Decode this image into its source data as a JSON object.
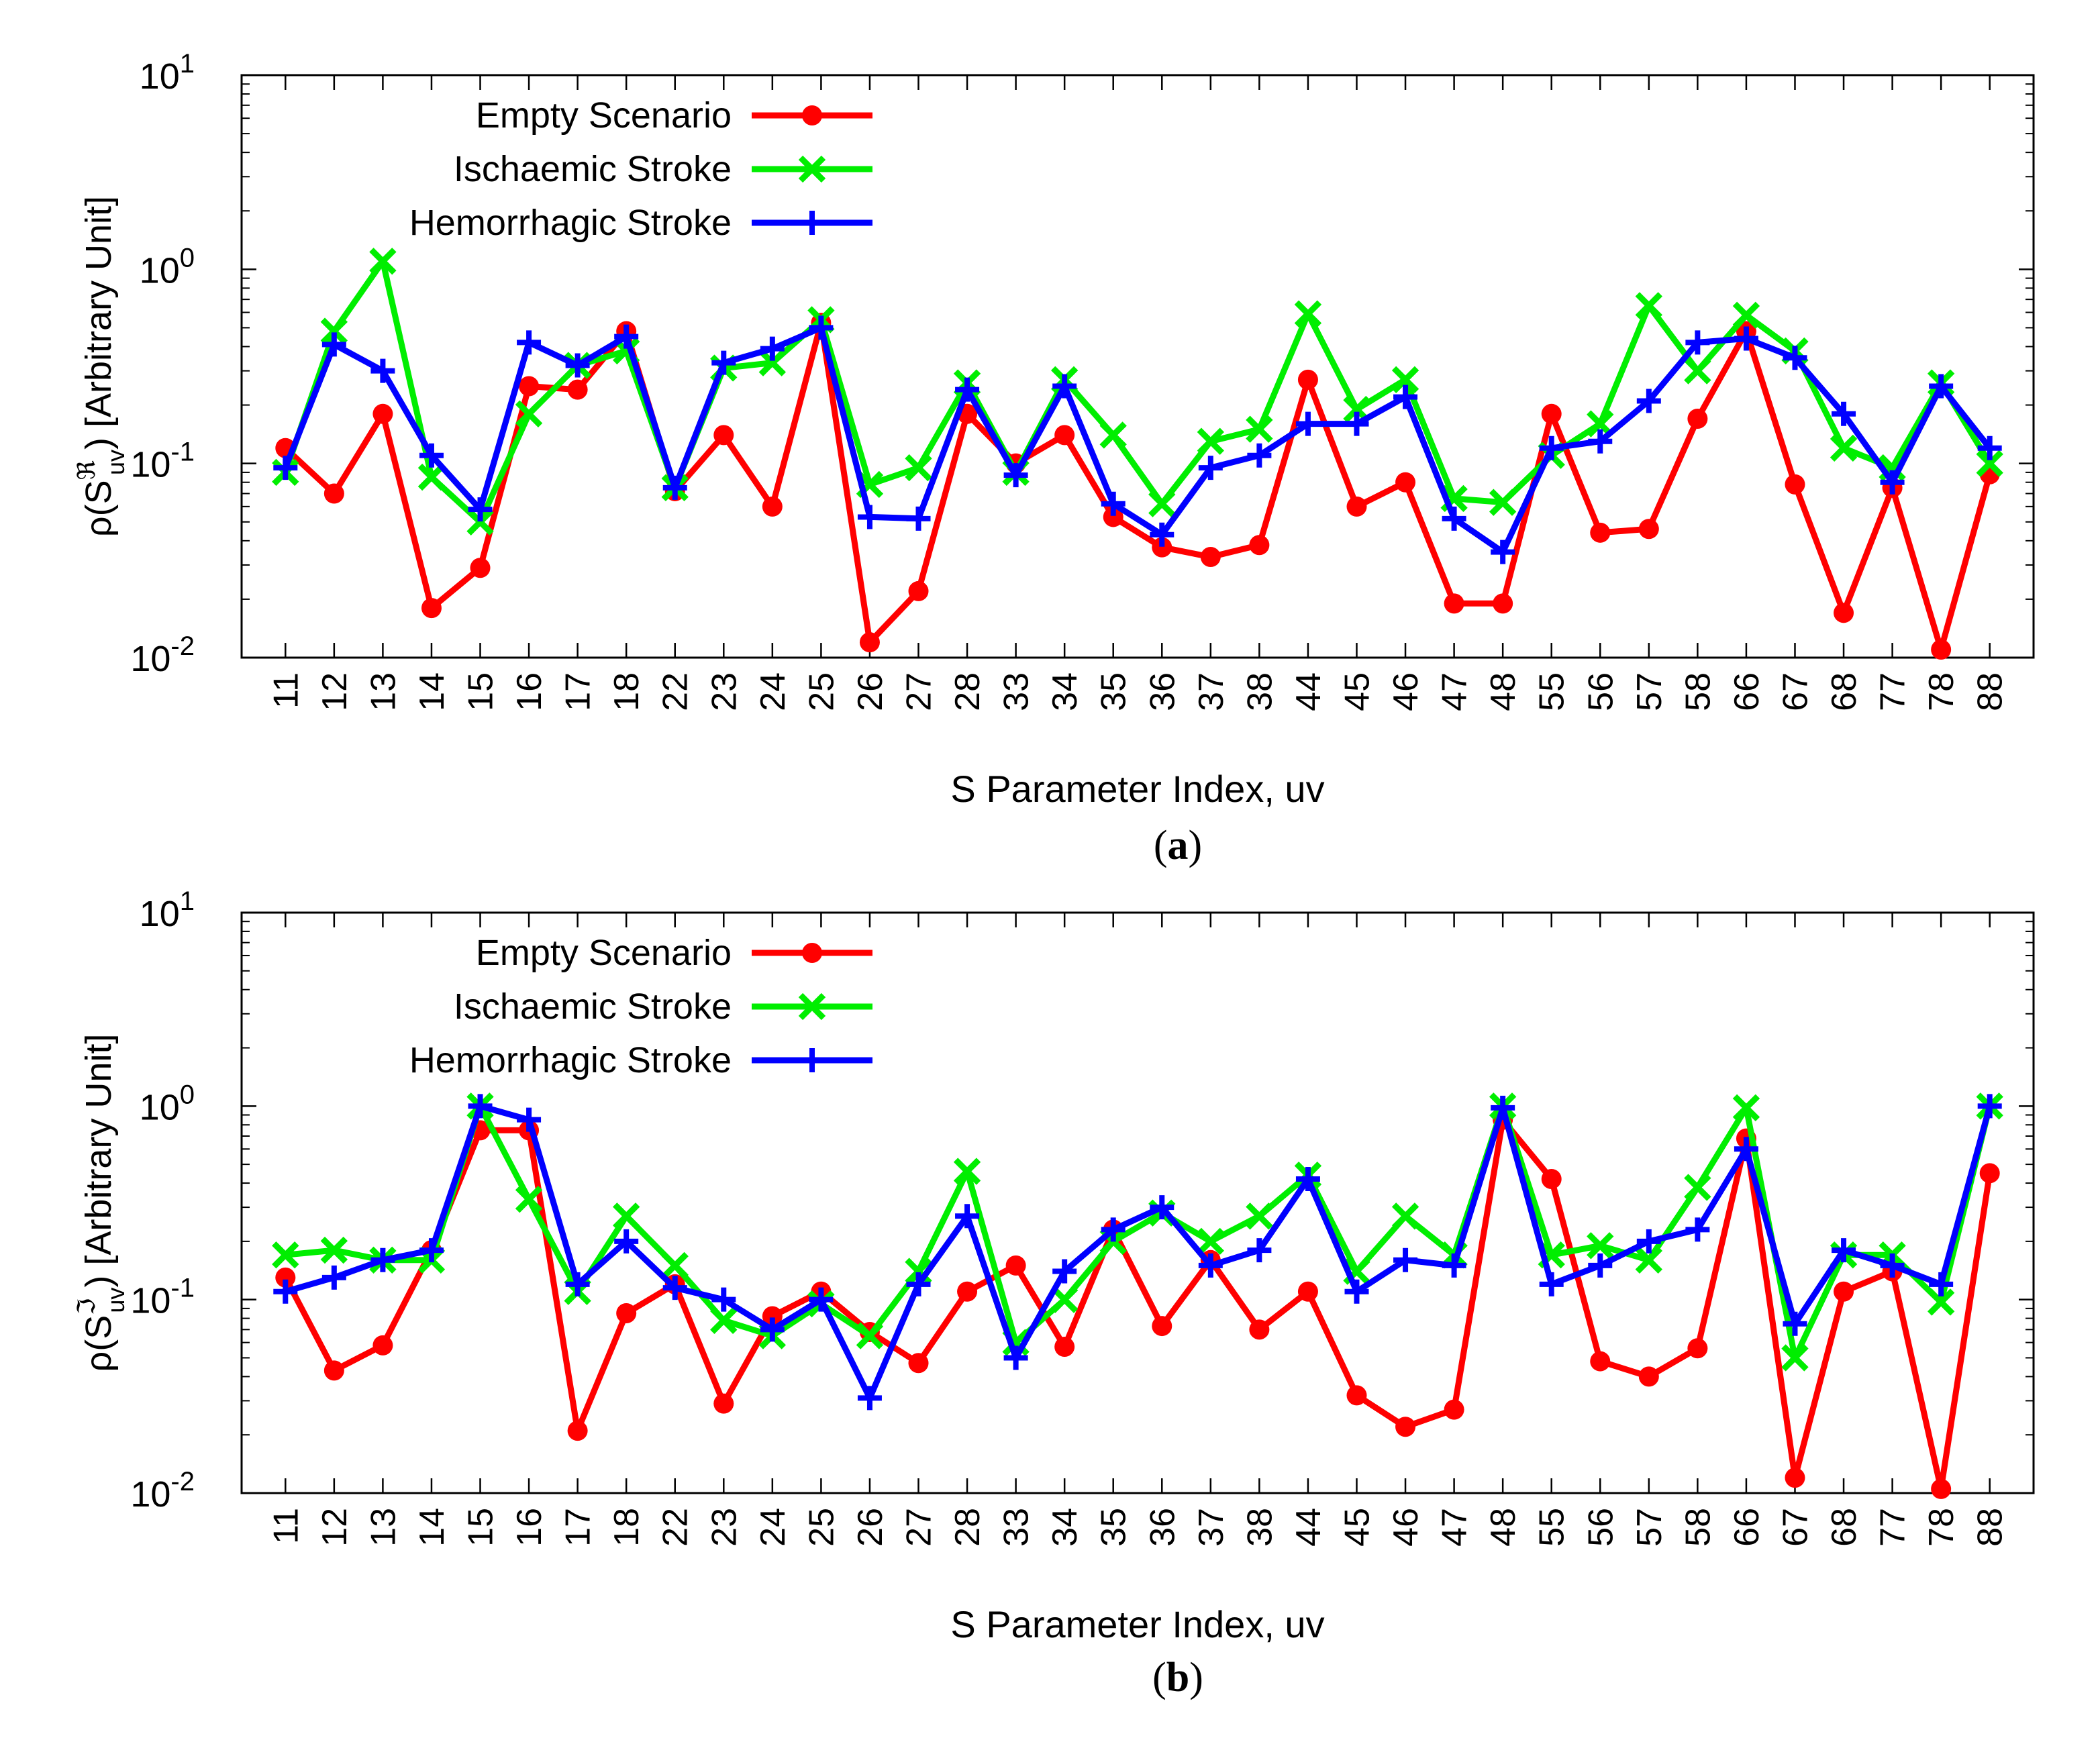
{
  "chart_data": [
    {
      "type": "line",
      "panel_label": "(a)",
      "panel_letter": "a",
      "ylabel_prefix": "ρ(S",
      "ylabel_sup": "ℜ",
      "ylabel_sub": "uv",
      "ylabel_suffix": ") [Arbitrary Unit]",
      "xlabel": "S Parameter Index, uv",
      "yscale": "log",
      "ylim": [
        0.01,
        10
      ],
      "yticks": [
        {
          "value": 0.01,
          "base": "10",
          "exp": "-2"
        },
        {
          "value": 0.1,
          "base": "10",
          "exp": "-1"
        },
        {
          "value": 1,
          "base": "10",
          "exp": "0"
        },
        {
          "value": 10,
          "base": "10",
          "exp": "1"
        }
      ],
      "categories": [
        "11",
        "12",
        "13",
        "14",
        "15",
        "16",
        "17",
        "18",
        "22",
        "23",
        "24",
        "25",
        "26",
        "27",
        "28",
        "33",
        "34",
        "35",
        "36",
        "37",
        "38",
        "44",
        "45",
        "46",
        "47",
        "48",
        "55",
        "56",
        "57",
        "58",
        "66",
        "67",
        "68",
        "77",
        "78",
        "88"
      ],
      "series": [
        {
          "name": "Empty Scenario",
          "color": "#ff0000",
          "marker": "circle",
          "values": [
            0.12,
            0.07,
            0.18,
            0.018,
            0.029,
            0.25,
            0.24,
            0.48,
            0.072,
            0.14,
            0.06,
            0.53,
            0.012,
            0.022,
            0.18,
            0.1,
            0.14,
            0.053,
            0.037,
            0.033,
            0.038,
            0.27,
            0.06,
            0.08,
            0.019,
            0.019,
            0.18,
            0.044,
            0.046,
            0.17,
            0.48,
            0.078,
            0.017,
            0.075,
            0.011,
            0.088
          ]
        },
        {
          "name": "Ischaemic Stroke",
          "color": "#00ee00",
          "marker": "x",
          "values": [
            0.09,
            0.48,
            1.1,
            0.085,
            0.05,
            0.18,
            0.32,
            0.38,
            0.075,
            0.31,
            0.33,
            0.55,
            0.078,
            0.095,
            0.26,
            0.09,
            0.27,
            0.14,
            0.062,
            0.13,
            0.15,
            0.59,
            0.19,
            0.27,
            0.066,
            0.063,
            0.11,
            0.16,
            0.65,
            0.3,
            0.58,
            0.38,
            0.12,
            0.095,
            0.26,
            0.1
          ]
        },
        {
          "name": "Hemorrhagic Stroke",
          "color": "#0000ff",
          "marker": "plus",
          "values": [
            0.095,
            0.41,
            0.3,
            0.11,
            0.058,
            0.42,
            0.32,
            0.45,
            0.075,
            0.33,
            0.39,
            0.5,
            0.053,
            0.052,
            0.24,
            0.087,
            0.25,
            0.062,
            0.043,
            0.095,
            0.11,
            0.16,
            0.16,
            0.22,
            0.052,
            0.035,
            0.12,
            0.13,
            0.21,
            0.42,
            0.44,
            0.35,
            0.18,
            0.08,
            0.25,
            0.12
          ]
        }
      ]
    },
    {
      "type": "line",
      "panel_label": "(b)",
      "panel_letter": "b",
      "ylabel_prefix": "ρ(S",
      "ylabel_sup": "ℑ",
      "ylabel_sub": "uv",
      "ylabel_suffix": ") [Arbitrary Unit]",
      "xlabel": "S Parameter Index, uv",
      "yscale": "log",
      "ylim": [
        0.01,
        10
      ],
      "yticks": [
        {
          "value": 0.01,
          "base": "10",
          "exp": "-2"
        },
        {
          "value": 0.1,
          "base": "10",
          "exp": "-1"
        },
        {
          "value": 1,
          "base": "10",
          "exp": "0"
        },
        {
          "value": 10,
          "base": "10",
          "exp": "1"
        }
      ],
      "categories": [
        "11",
        "12",
        "13",
        "14",
        "15",
        "16",
        "17",
        "18",
        "22",
        "23",
        "24",
        "25",
        "26",
        "27",
        "28",
        "33",
        "34",
        "35",
        "36",
        "37",
        "38",
        "44",
        "45",
        "46",
        "47",
        "48",
        "55",
        "56",
        "57",
        "58",
        "66",
        "67",
        "68",
        "77",
        "78",
        "88"
      ],
      "series": [
        {
          "name": "Empty Scenario",
          "color": "#ff0000",
          "marker": "circle",
          "values": [
            0.13,
            0.043,
            0.058,
            0.18,
            0.75,
            0.75,
            0.021,
            0.085,
            0.12,
            0.029,
            0.082,
            0.11,
            0.068,
            0.047,
            0.11,
            0.15,
            0.057,
            0.23,
            0.073,
            0.16,
            0.07,
            0.11,
            0.032,
            0.022,
            0.027,
            0.85,
            0.42,
            0.048,
            0.04,
            0.056,
            0.68,
            0.012,
            0.11,
            0.14,
            0.0105,
            0.45
          ]
        },
        {
          "name": "Ischaemic Stroke",
          "color": "#00ee00",
          "marker": "x",
          "values": [
            0.17,
            0.18,
            0.16,
            0.16,
            1.0,
            0.33,
            0.11,
            0.27,
            0.15,
            0.078,
            0.065,
            0.095,
            0.065,
            0.14,
            0.46,
            0.06,
            0.1,
            0.2,
            0.28,
            0.2,
            0.27,
            0.44,
            0.14,
            0.27,
            0.17,
            1.0,
            0.17,
            0.19,
            0.16,
            0.38,
            0.98,
            0.05,
            0.17,
            0.17,
            0.097,
            1.0
          ]
        },
        {
          "name": "Hemorrhagic Stroke",
          "color": "#0000ff",
          "marker": "plus",
          "values": [
            0.11,
            0.13,
            0.16,
            0.18,
            1.0,
            0.85,
            0.12,
            0.2,
            0.115,
            0.1,
            0.07,
            0.1,
            0.031,
            0.12,
            0.27,
            0.05,
            0.14,
            0.23,
            0.3,
            0.15,
            0.18,
            0.42,
            0.11,
            0.16,
            0.15,
            0.98,
            0.12,
            0.15,
            0.2,
            0.23,
            0.6,
            0.075,
            0.18,
            0.15,
            0.12,
            1.0
          ]
        }
      ]
    }
  ]
}
